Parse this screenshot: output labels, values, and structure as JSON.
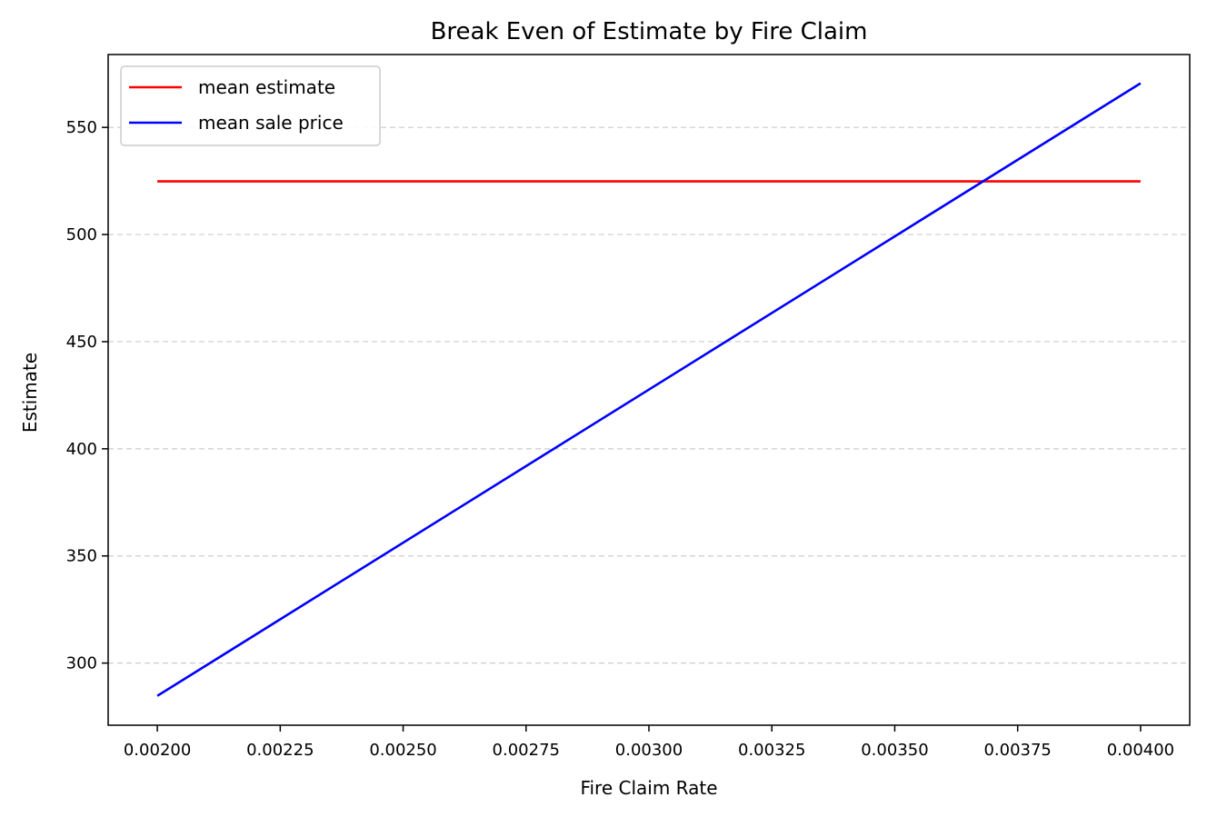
{
  "chart_data": {
    "type": "line",
    "title": "Break Even of Estimate by Fire Claim",
    "xlabel": "Fire Claim Rate",
    "ylabel": "Estimate",
    "xlim": [
      0.0019,
      0.0041
    ],
    "ylim": [
      271,
      584
    ],
    "xticks": [
      0.002,
      0.00225,
      0.0025,
      0.00275,
      0.003,
      0.00325,
      0.0035,
      0.00375,
      0.004
    ],
    "xtick_labels": [
      "0.00200",
      "0.00225",
      "0.00250",
      "0.00275",
      "0.00300",
      "0.00325",
      "0.00350",
      "0.00375",
      "0.00400"
    ],
    "yticks": [
      300,
      350,
      400,
      450,
      500,
      550
    ],
    "ytick_labels": [
      "300",
      "350",
      "400",
      "450",
      "500",
      "550"
    ],
    "grid": "y-dashed",
    "legend_position": "top-left",
    "series": [
      {
        "name": "mean estimate",
        "color": "#ff0000",
        "x": [
          0.002,
          0.004
        ],
        "y": [
          524.8,
          524.8
        ]
      },
      {
        "name": "mean sale price",
        "color": "#0000ff",
        "x": [
          0.002,
          0.004
        ],
        "y": [
          284.7,
          570.6
        ]
      }
    ]
  }
}
